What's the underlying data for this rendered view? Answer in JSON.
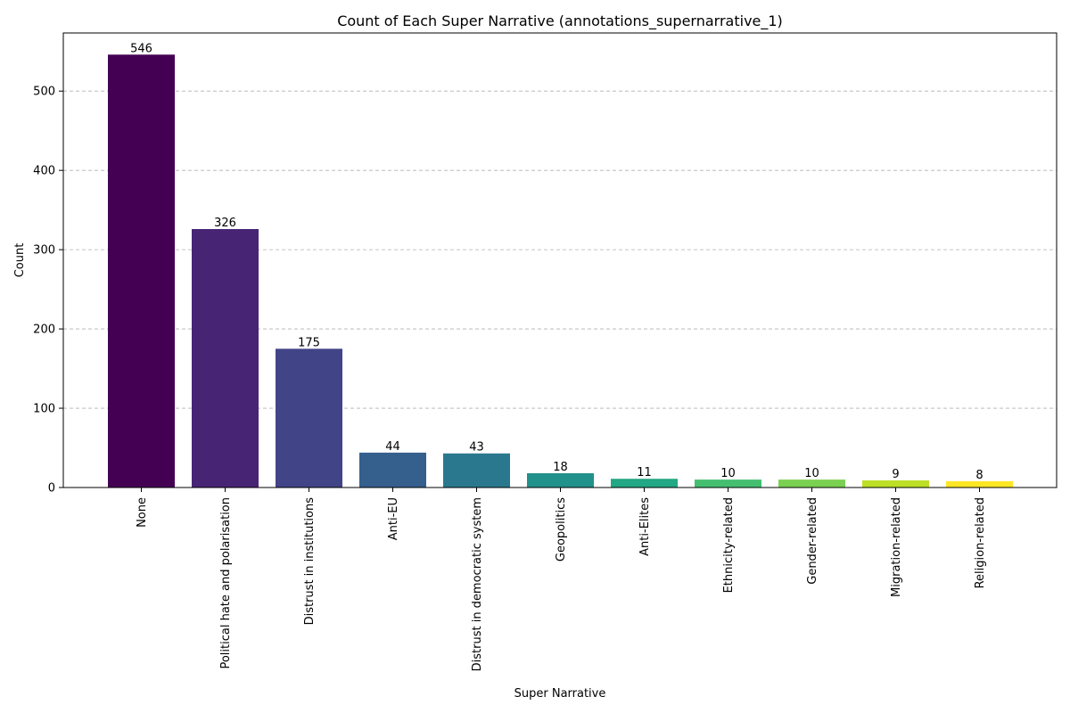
{
  "chart_data": {
    "type": "bar",
    "title": "Count of Each Super Narrative (annotations_supernarrative_1)",
    "xlabel": "Super Narrative",
    "ylabel": "Count",
    "categories": [
      "None",
      "Political hate and polarisation",
      "Distrust in institutions",
      "Anti-EU",
      "Distrust in democratic system",
      "Geopolitics",
      "Anti-Elites",
      "Ethnicity-related",
      "Gender-related",
      "Migration-related",
      "Religion-related"
    ],
    "values": [
      546,
      326,
      175,
      44,
      43,
      18,
      11,
      10,
      10,
      9,
      8
    ],
    "colors": [
      "#440154",
      "#482475",
      "#414487",
      "#355f8d",
      "#2a788e",
      "#21918c",
      "#22a884",
      "#44bf70",
      "#7ad151",
      "#bddf26",
      "#fde725"
    ],
    "yticks": [
      0,
      100,
      200,
      300,
      400,
      500
    ],
    "ylim": [
      0,
      573.3
    ],
    "grid": "y-dashed",
    "legend": "none"
  }
}
